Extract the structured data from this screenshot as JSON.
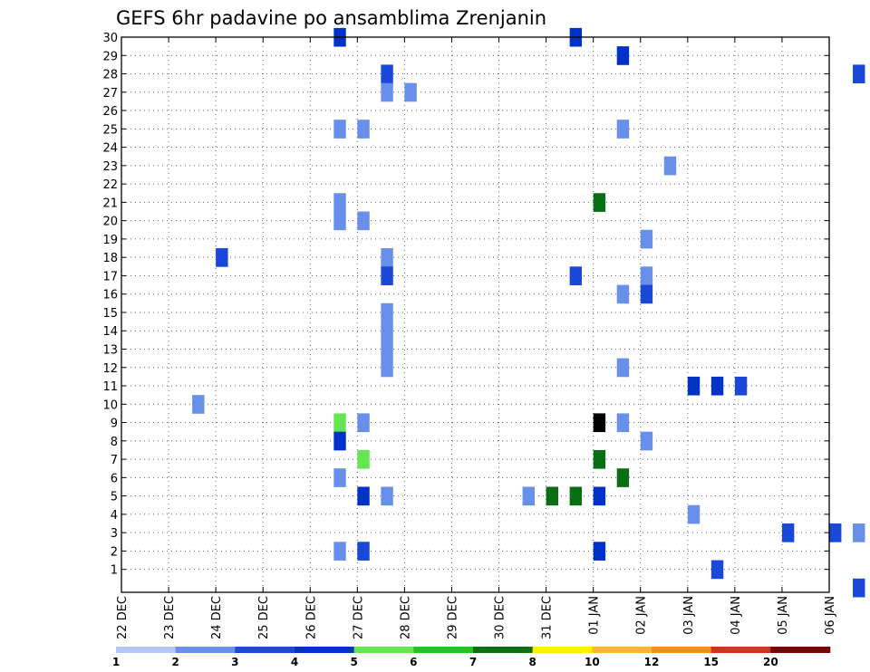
{
  "chart_data": {
    "type": "heatmap",
    "title": "GEFS 6hr padavine po ansamblima Zrenjanin",
    "xlabel": "",
    "ylabel": "",
    "y_ticks": [
      "1",
      "2",
      "3",
      "4",
      "5",
      "6",
      "7",
      "8",
      "9",
      "10",
      "11",
      "12",
      "13",
      "14",
      "15",
      "16",
      "17",
      "18",
      "19",
      "20",
      "21",
      "22",
      "23",
      "24",
      "25",
      "26",
      "27",
      "28",
      "29",
      "30"
    ],
    "x_ticks": [
      "22 DEC",
      "23 DEC",
      "24 DEC",
      "25 DEC",
      "26 DEC",
      "27 DEC",
      "28 DEC",
      "29 DEC",
      "30 DEC",
      "31 DEC",
      "01 JAN",
      "02 JAN",
      "03 JAN",
      "04 JAN",
      "05 JAN",
      "06 JAN"
    ],
    "x_unit": "6-hour steps from 22 DEC 00Z",
    "grid": true,
    "colorbar": {
      "labels": [
        "1",
        "2",
        "3",
        "4",
        "5",
        "6",
        "7",
        "8",
        "10",
        "12",
        "15",
        "20"
      ],
      "colors": [
        "#b4c8f8",
        "#6890ea",
        "#1a48d8",
        "#0032c8",
        "#64e650",
        "#1ec81e",
        "#0a6e14",
        "#fff000",
        "#ffb432",
        "#ff8c14",
        "#d2321e",
        "#780000"
      ]
    },
    "cells": [
      [
        9.5,
        30,
        3
      ],
      [
        4.5,
        30,
        3
      ],
      [
        10.5,
        29,
        3
      ],
      [
        22.5,
        29,
        1
      ],
      [
        23,
        29,
        1
      ],
      [
        5.5,
        28,
        2
      ],
      [
        15.5,
        28,
        2
      ],
      [
        16,
        28,
        2
      ],
      [
        19.5,
        28,
        2
      ],
      [
        20,
        28,
        1
      ],
      [
        23.5,
        28,
        1
      ],
      [
        5.5,
        27,
        1
      ],
      [
        6,
        27,
        1
      ],
      [
        16.5,
        27,
        2
      ],
      [
        17,
        27,
        1
      ],
      [
        24.5,
        27,
        13
      ],
      [
        20,
        26,
        3
      ],
      [
        4.5,
        25,
        1
      ],
      [
        5,
        25,
        1
      ],
      [
        10.5,
        25,
        1
      ],
      [
        22.5,
        25,
        10
      ],
      [
        11.5,
        23,
        1
      ],
      [
        16.5,
        23,
        2
      ],
      [
        17,
        23,
        6
      ],
      [
        30,
        23,
        3
      ],
      [
        18.5,
        22,
        13
      ],
      [
        19,
        22,
        1
      ],
      [
        20.5,
        22,
        1
      ],
      [
        28.5,
        22,
        5
      ],
      [
        4.5,
        21,
        1
      ],
      [
        10,
        21,
        6
      ],
      [
        4.5,
        20,
        1
      ],
      [
        5,
        20,
        1
      ],
      [
        11,
        19,
        1
      ],
      [
        30,
        19,
        2
      ],
      [
        2,
        18,
        2
      ],
      [
        5.5,
        18,
        1
      ],
      [
        20,
        18,
        1
      ],
      [
        20.5,
        18,
        4
      ],
      [
        5.5,
        17,
        2
      ],
      [
        9.5,
        17,
        2
      ],
      [
        11,
        17,
        1
      ],
      [
        16.5,
        17,
        5
      ],
      [
        17,
        17,
        4
      ],
      [
        19.5,
        17,
        1
      ],
      [
        10.5,
        16,
        1
      ],
      [
        11,
        16,
        2
      ],
      [
        16.5,
        16,
        2
      ],
      [
        17,
        16,
        2
      ],
      [
        17.5,
        16,
        1
      ],
      [
        20.5,
        16,
        1
      ],
      [
        21,
        16,
        1
      ],
      [
        5.5,
        15,
        1
      ],
      [
        30,
        15,
        3
      ],
      [
        5.5,
        14,
        1
      ],
      [
        5.5,
        13,
        1
      ],
      [
        18,
        13,
        6
      ],
      [
        5.5,
        12,
        1
      ],
      [
        10.5,
        12,
        1
      ],
      [
        21.5,
        12,
        1
      ],
      [
        12,
        11,
        3
      ],
      [
        12.5,
        11,
        3
      ],
      [
        13,
        11,
        2
      ],
      [
        1.5,
        10,
        1
      ],
      [
        20,
        10,
        4
      ],
      [
        20.5,
        10,
        5
      ],
      [
        21,
        10,
        2
      ],
      [
        4.5,
        9,
        4
      ],
      [
        5,
        9,
        1
      ],
      [
        10,
        9,
        13
      ],
      [
        10.5,
        9,
        1
      ],
      [
        18,
        9,
        1
      ],
      [
        18.5,
        9,
        5
      ],
      [
        4.5,
        8,
        3
      ],
      [
        11,
        8,
        1
      ],
      [
        30,
        8,
        1
      ],
      [
        5,
        7,
        4
      ],
      [
        10,
        7,
        6
      ],
      [
        20.5,
        7,
        2
      ],
      [
        21,
        7,
        2
      ],
      [
        4.5,
        6,
        1
      ],
      [
        10.5,
        6,
        6
      ],
      [
        17.5,
        6,
        1
      ],
      [
        18,
        6,
        5
      ],
      [
        18.5,
        6,
        5
      ],
      [
        5,
        5,
        3
      ],
      [
        5.5,
        5,
        1
      ],
      [
        8.5,
        5,
        1
      ],
      [
        9,
        5,
        6
      ],
      [
        9.5,
        5,
        6
      ],
      [
        10,
        5,
        3
      ],
      [
        21.5,
        5,
        3
      ],
      [
        12,
        4,
        1
      ],
      [
        16.5,
        4,
        1
      ],
      [
        17,
        4,
        6
      ],
      [
        17.5,
        4,
        1
      ],
      [
        30,
        4,
        3
      ],
      [
        14,
        3,
        2
      ],
      [
        15,
        3,
        2
      ],
      [
        15.5,
        3,
        1
      ],
      [
        16,
        3,
        5
      ],
      [
        17.5,
        3,
        1
      ],
      [
        18,
        3,
        1
      ],
      [
        18.5,
        3,
        2
      ],
      [
        19,
        3,
        8
      ],
      [
        26.5,
        3,
        2
      ],
      [
        28,
        3,
        1
      ],
      [
        28.5,
        3,
        1
      ],
      [
        4.5,
        2,
        1
      ],
      [
        5,
        2,
        2
      ],
      [
        10,
        2,
        3
      ],
      [
        29.5,
        2,
        1
      ],
      [
        30,
        2,
        1
      ],
      [
        12.5,
        1,
        2
      ],
      [
        15.5,
        0,
        2
      ],
      [
        16.5,
        0,
        2
      ],
      [
        17,
        0,
        1
      ]
    ]
  }
}
